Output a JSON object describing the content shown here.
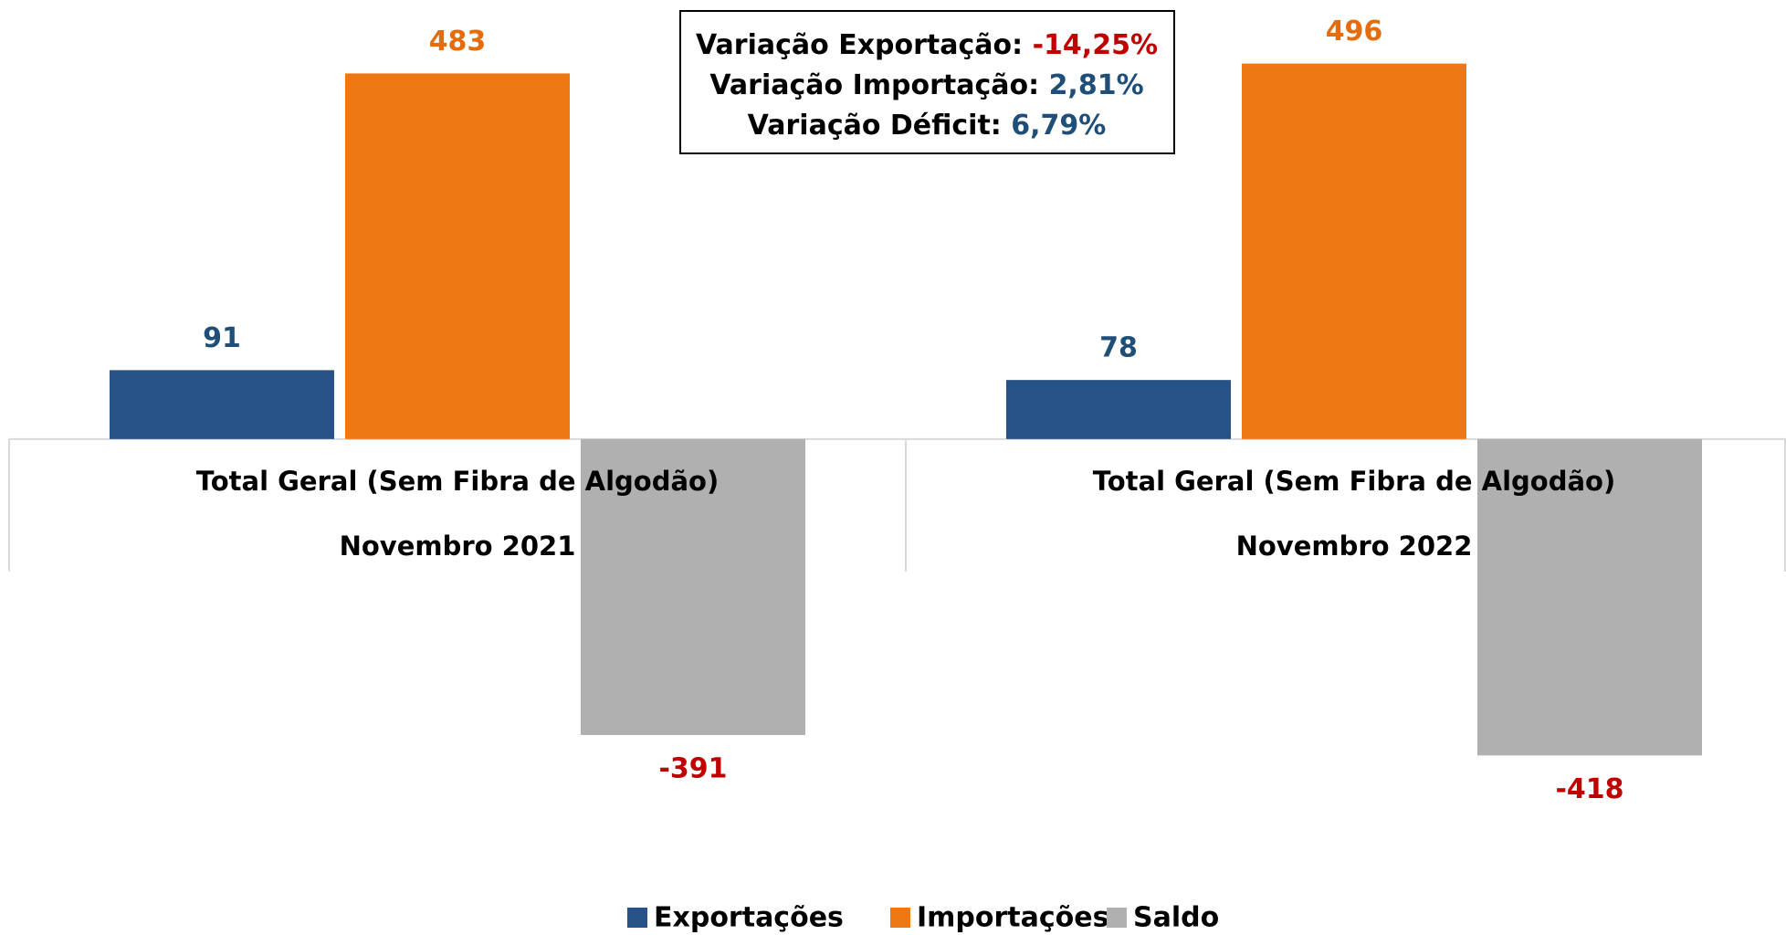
{
  "chart_data": {
    "type": "bar",
    "categories": [
      [
        "Total Geral (Sem Fibra de Algodão)",
        "Novembro 2021"
      ],
      [
        "Total Geral (Sem Fibra de Algodão)",
        "Novembro 2022"
      ]
    ],
    "series": [
      {
        "name": "Exportações",
        "color": "#275288",
        "label_color": "#1f4e79",
        "values": [
          91,
          78
        ]
      },
      {
        "name": "Importações",
        "color": "#f07814",
        "label_color": "#e46c0a",
        "values": [
          483,
          496
        ]
      },
      {
        "name": "Saldo",
        "color": "#b0b0b0",
        "label_color": "#c00000",
        "values": [
          -391,
          -418
        ]
      }
    ],
    "ylim": [
      -540,
      580
    ],
    "legend": "bottom",
    "annotations": [
      {
        "label": "Variação Exportação:",
        "value": "-14,25%"
      },
      {
        "label": "Variação Importação:",
        "value": "2,81%"
      },
      {
        "label": "Variação Déficit:",
        "value": "6,79%"
      }
    ]
  }
}
